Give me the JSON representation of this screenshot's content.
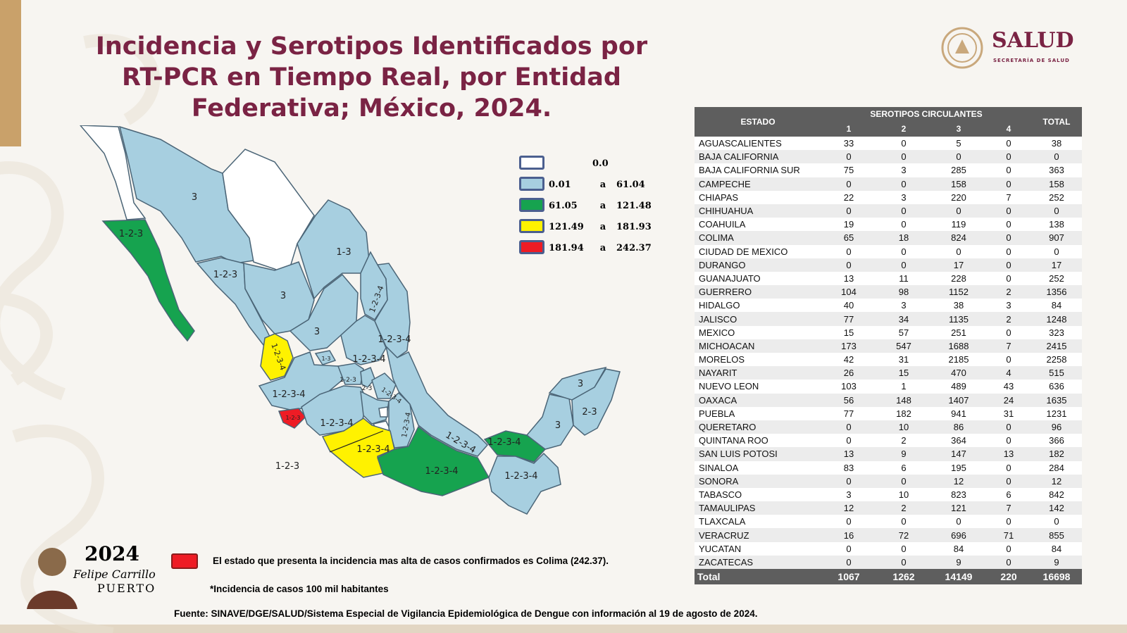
{
  "colors": {
    "title": "#7a2344",
    "corner_bar": "#c9a16a",
    "bottom_bar": "#e2d6c3",
    "logo_text": "#7a2344",
    "logo_seal": "#c9a87c",
    "incidence_zero": "#ffffff",
    "incidence_low": "#a7cfe0",
    "incidence_mid": "#16a34f",
    "incidence_high": "#fff200",
    "incidence_max": "#ee1c25",
    "table_header": "#5e5e5e",
    "state_border": "#4b6577",
    "label_text": "#222222"
  },
  "title": "Incidencia y Serotipos Identificados por RT-PCR en Tiempo Real, por Entidad Federativa; México, 2024.",
  "logo": {
    "name": "SALUD",
    "subtitle": "SECRETARÍA DE SALUD"
  },
  "legend": {
    "zero": "0.0",
    "connector": "a",
    "ranges": [
      {
        "min": "0.01",
        "max": "61.04"
      },
      {
        "min": "61.05",
        "max": "121.48"
      },
      {
        "min": "121.49",
        "max": "181.93"
      },
      {
        "min": "181.94",
        "max": "242.37"
      }
    ]
  },
  "map_labels": {
    "sonora": "3",
    "baja_california_sur": "1-2-3",
    "sinaloa": "1-2-3",
    "coahuila": "1-3",
    "durango": "3",
    "nuevo_leon": "1-2-3-4",
    "tamaulipas": "1-2-3-4",
    "zacatecas": "3",
    "san_luis_potosi": "1-2-3-4",
    "nayarit": "1-2-3-4",
    "aguascalientes": "1-3",
    "jalisco": "1-2-3-4",
    "guanajuato": "1-2-3",
    "queretaro": "2-3",
    "hidalgo": "1-2-3-4",
    "colima": "1-2-3",
    "michoacan": "1-2-3-4",
    "veracruz": "1-2-3-4",
    "guerrero": "1-2-3-4",
    "morelos_callout": "1-2-3",
    "puebla_south": "1-2-3-4",
    "oaxaca": "1-2-3-4",
    "tabasco": "1-2-3-4",
    "chiapas": "1-2-3-4",
    "yucatan": "3",
    "quintana_roo": "2-3",
    "campeche": "3"
  },
  "table": {
    "header_estado": "ESTADO",
    "header_group": "SEROTIPOS CIRCULANTES",
    "header_total": "TOTAL",
    "serotypes": [
      "1",
      "2",
      "3",
      "4"
    ],
    "rows": [
      {
        "estado": "AGUASCALIENTES",
        "s1": "33",
        "s2": "0",
        "s3": "5",
        "s4": "0",
        "total": "38"
      },
      {
        "estado": "BAJA CALIFORNIA",
        "s1": "0",
        "s2": "0",
        "s3": "0",
        "s4": "0",
        "total": "0"
      },
      {
        "estado": "BAJA CALIFORNIA SUR",
        "s1": "75",
        "s2": "3",
        "s3": "285",
        "s4": "0",
        "total": "363"
      },
      {
        "estado": "CAMPECHE",
        "s1": "0",
        "s2": "0",
        "s3": "158",
        "s4": "0",
        "total": "158"
      },
      {
        "estado": "CHIAPAS",
        "s1": "22",
        "s2": "3",
        "s3": "220",
        "s4": "7",
        "total": "252"
      },
      {
        "estado": "CHIHUAHUA",
        "s1": "0",
        "s2": "0",
        "s3": "0",
        "s4": "0",
        "total": "0"
      },
      {
        "estado": "COAHUILA",
        "s1": "19",
        "s2": "0",
        "s3": "119",
        "s4": "0",
        "total": "138"
      },
      {
        "estado": "COLIMA",
        "s1": "65",
        "s2": "18",
        "s3": "824",
        "s4": "0",
        "total": "907"
      },
      {
        "estado": "CIUDAD DE MEXICO",
        "s1": "0",
        "s2": "0",
        "s3": "0",
        "s4": "0",
        "total": "0"
      },
      {
        "estado": "DURANGO",
        "s1": "0",
        "s2": "0",
        "s3": "17",
        "s4": "0",
        "total": "17"
      },
      {
        "estado": "GUANAJUATO",
        "s1": "13",
        "s2": "11",
        "s3": "228",
        "s4": "0",
        "total": "252"
      },
      {
        "estado": "GUERRERO",
        "s1": "104",
        "s2": "98",
        "s3": "1152",
        "s4": "2",
        "total": "1356"
      },
      {
        "estado": "HIDALGO",
        "s1": "40",
        "s2": "3",
        "s3": "38",
        "s4": "3",
        "total": "84"
      },
      {
        "estado": "JALISCO",
        "s1": "77",
        "s2": "34",
        "s3": "1135",
        "s4": "2",
        "total": "1248"
      },
      {
        "estado": "MEXICO",
        "s1": "15",
        "s2": "57",
        "s3": "251",
        "s4": "0",
        "total": "323"
      },
      {
        "estado": "MICHOACAN",
        "s1": "173",
        "s2": "547",
        "s3": "1688",
        "s4": "7",
        "total": "2415"
      },
      {
        "estado": "MORELOS",
        "s1": "42",
        "s2": "31",
        "s3": "2185",
        "s4": "0",
        "total": "2258"
      },
      {
        "estado": "NAYARIT",
        "s1": "26",
        "s2": "15",
        "s3": "470",
        "s4": "4",
        "total": "515"
      },
      {
        "estado": "NUEVO LEON",
        "s1": "103",
        "s2": "1",
        "s3": "489",
        "s4": "43",
        "total": "636"
      },
      {
        "estado": "OAXACA",
        "s1": "56",
        "s2": "148",
        "s3": "1407",
        "s4": "24",
        "total": "1635"
      },
      {
        "estado": "PUEBLA",
        "s1": "77",
        "s2": "182",
        "s3": "941",
        "s4": "31",
        "total": "1231"
      },
      {
        "estado": "QUERETARO",
        "s1": "0",
        "s2": "10",
        "s3": "86",
        "s4": "0",
        "total": "96"
      },
      {
        "estado": "QUINTANA ROO",
        "s1": "0",
        "s2": "2",
        "s3": "364",
        "s4": "0",
        "total": "366"
      },
      {
        "estado": "SAN LUIS POTOSI",
        "s1": "13",
        "s2": "9",
        "s3": "147",
        "s4": "13",
        "total": "182"
      },
      {
        "estado": "SINALOA",
        "s1": "83",
        "s2": "6",
        "s3": "195",
        "s4": "0",
        "total": "284"
      },
      {
        "estado": "SONORA",
        "s1": "0",
        "s2": "0",
        "s3": "12",
        "s4": "0",
        "total": "12"
      },
      {
        "estado": "TABASCO",
        "s1": "3",
        "s2": "10",
        "s3": "823",
        "s4": "6",
        "total": "842"
      },
      {
        "estado": "TAMAULIPAS",
        "s1": "12",
        "s2": "2",
        "s3": "121",
        "s4": "7",
        "total": "142"
      },
      {
        "estado": "TLAXCALA",
        "s1": "0",
        "s2": "0",
        "s3": "0",
        "s4": "0",
        "total": "0"
      },
      {
        "estado": "VERACRUZ",
        "s1": "16",
        "s2": "72",
        "s3": "696",
        "s4": "71",
        "total": "855"
      },
      {
        "estado": "YUCATAN",
        "s1": "0",
        "s2": "0",
        "s3": "84",
        "s4": "0",
        "total": "84"
      },
      {
        "estado": "ZACATECAS",
        "s1": "0",
        "s2": "0",
        "s3": "9",
        "s4": "0",
        "total": "9"
      }
    ],
    "footer": {
      "estado": "Total",
      "s1": "1067",
      "s2": "1262",
      "s3": "14149",
      "s4": "220",
      "total": "16698"
    }
  },
  "notes": {
    "highest": "El estado que presenta la incidencia mas alta de casos confirmados es Colima (242.37).",
    "incidence": "*Incidencia de casos 100 mil habitantes",
    "source": "Fuente: SINAVE/DGE/SALUD/Sistema Especial de Vigilancia Epidemiológica de Dengue con información al 19 de agosto de 2024."
  },
  "fcp": {
    "year": "2024",
    "name": "Felipe Carrillo",
    "surname": "PUERTO"
  }
}
